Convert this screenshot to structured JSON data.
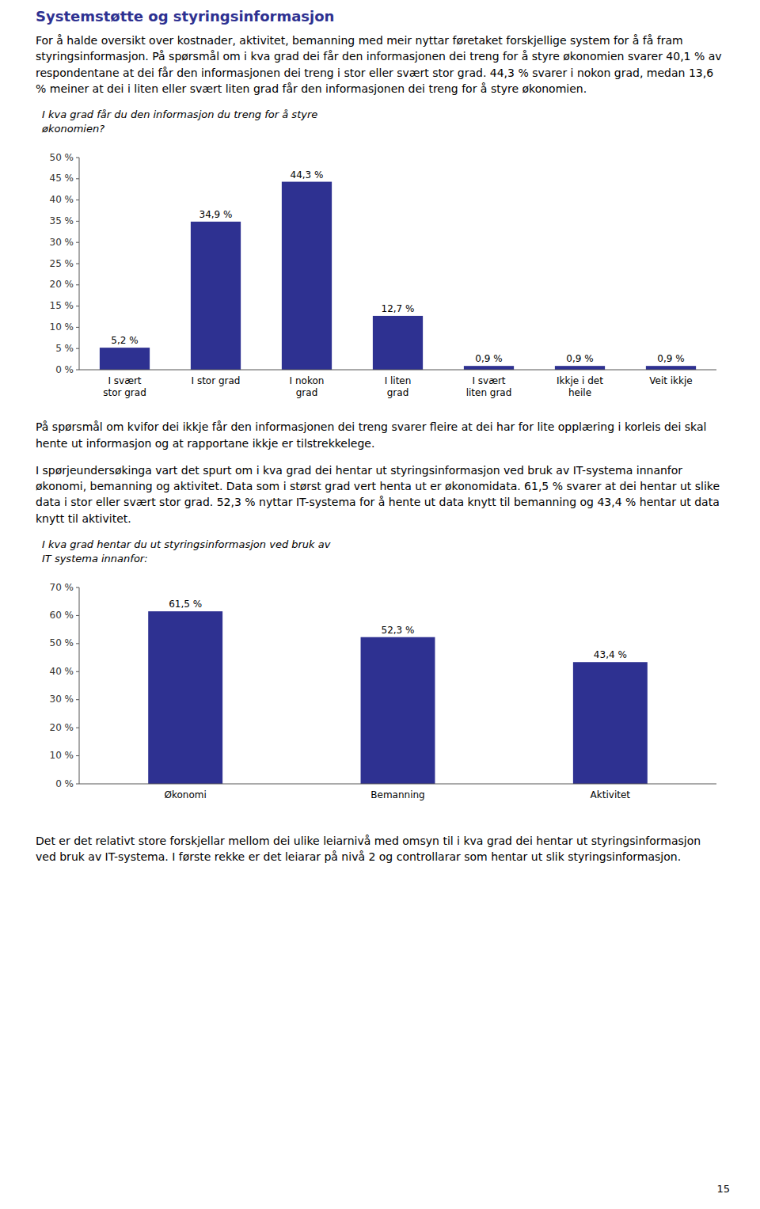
{
  "title": "Systemstøtte og styringsinformasjon",
  "annotations": [
    "For å halde oversikt over kostnader, aktivitet, bemanning med meir nyttar føretaket forskjellige system for å få fram styringsinformasjon. På spørsmål om i kva grad dei får den informasjonen dei treng for å styre økonomien svarer 40,1 % av respondentane at dei får den informasjonen dei treng i stor eller svært stor grad. 44,3 % svarer i nokon grad, medan 13,6 % meiner at dei i liten eller svært liten grad får den informasjonen dei treng for å styre økonomien.",
    "På spørsmål om kvifor dei ikkje får den informasjonen dei treng svarer fleire at dei har for lite opplæring i korleis dei skal hente ut informasjon og at rapportane ikkje er tilstrekkelege.",
    "I spørjeundersøkinga vart det spurt om i kva grad dei hentar ut styringsinformasjon ved bruk av IT-systema innanfor økonomi, bemanning og aktivitet. Data som i størst grad vert henta ut er økonomidata. 61,5 % svarer at dei hentar ut slike data i stor eller svært stor grad. 52,3 % nyttar IT-systema for å hente ut data knytt til bemanning og 43,4 % hentar ut data knytt til aktivitet.",
    "Det er det relativt store forskjellar mellom dei ulike leiarnivå med omsyn til i kva grad dei hentar ut styringsinformasjon ved bruk av IT-systema. I første rekke er det leiarar på nivå 2 og controllarar som hentar ut slik styringsinformasjon.",
    "15"
  ],
  "chart_data": [
    {
      "type": "bar",
      "title": "I kva grad får du den informasjon du treng for å styre\nøkonomien?",
      "categories": [
        "I svært\nstor grad",
        "I stor grad",
        "I nokon\ngrad",
        "I liten\ngrad",
        "I svært\nliten grad",
        "Ikkje i det\nheile",
        "Veit ikkje"
      ],
      "values": [
        5.2,
        34.9,
        44.3,
        12.7,
        0.9,
        0.9,
        0.9
      ],
      "value_labels": [
        "5,2 %",
        "34,9 %",
        "44,3 %",
        "12,7 %",
        "0,9 %",
        "0,9 %",
        "0,9 %"
      ],
      "data_labels": true,
      "color": "#2E3191",
      "grid": false,
      "ylim": [
        0,
        50
      ],
      "yticks": [
        {
          "value": 0,
          "label": "0 %"
        },
        {
          "value": 5,
          "label": "5 %"
        },
        {
          "value": 10,
          "label": "10 %"
        },
        {
          "value": 15,
          "label": "15 %"
        },
        {
          "value": 20,
          "label": "20 %"
        },
        {
          "value": 25,
          "label": "25 %"
        },
        {
          "value": 30,
          "label": "30 %"
        },
        {
          "value": 35,
          "label": "35 %"
        },
        {
          "value": 40,
          "label": "40 %"
        },
        {
          "value": 45,
          "label": "45 %"
        },
        {
          "value": 50,
          "label": "50 %"
        }
      ]
    },
    {
      "type": "bar",
      "title": "I kva grad hentar du ut styringsinformasjon ved bruk av\nIT systema innanfor:",
      "categories": [
        "Økonomi",
        "Bemanning",
        "Aktivitet"
      ],
      "values": [
        61.5,
        52.3,
        43.4
      ],
      "value_labels": [
        "61,5 %",
        "52,3 %",
        "43,4 %"
      ],
      "data_labels": true,
      "color": "#2E3191",
      "grid": false,
      "ylim": [
        0,
        70
      ],
      "yticks": [
        {
          "value": 0,
          "label": "0 %"
        },
        {
          "value": 10,
          "label": "10 %"
        },
        {
          "value": 20,
          "label": "20 %"
        },
        {
          "value": 30,
          "label": "30 %"
        },
        {
          "value": 40,
          "label": "40 %"
        },
        {
          "value": 50,
          "label": "50 %"
        },
        {
          "value": 60,
          "label": "60 %"
        },
        {
          "value": 70,
          "label": "70 %"
        }
      ]
    }
  ]
}
